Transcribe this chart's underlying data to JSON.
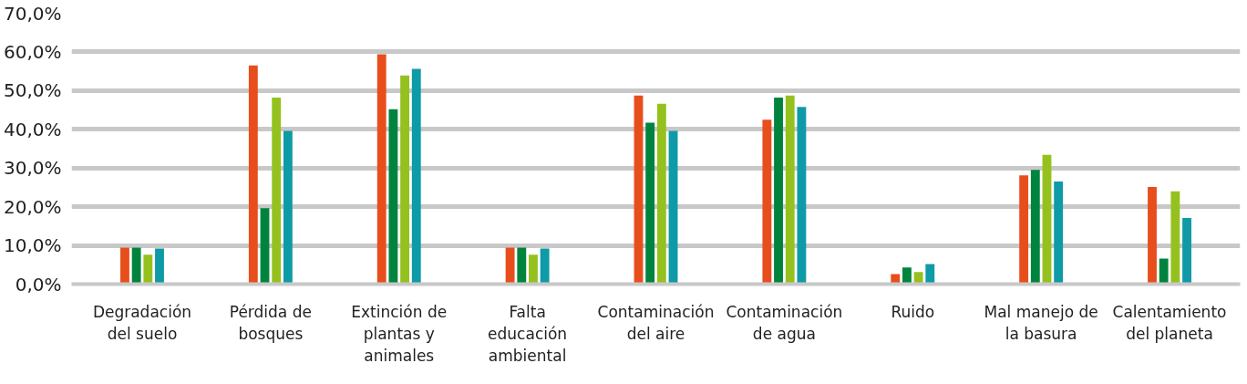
{
  "chart_data": {
    "type": "bar",
    "categories": [
      "Degradación del suelo",
      "Pérdida de bosques",
      "Extinción de plantas y animales",
      "Falta educación ambiental",
      "Contaminación del aire",
      "Contaminación de agua",
      "Ruido",
      "Mal manejo de la basura",
      "Calentamiento del planeta"
    ],
    "series": [
      {
        "color": "#e84e1b",
        "values": [
          9.4,
          56.5,
          59.4,
          9.4,
          48.7,
          42.5,
          2.6,
          28.1,
          25.1
        ]
      },
      {
        "color": "#00843d",
        "values": [
          9.4,
          19.6,
          45.2,
          9.4,
          41.7,
          48.2,
          4.3,
          29.5,
          6.6
        ]
      },
      {
        "color": "#95c11f",
        "values": [
          7.6,
          48.2,
          53.9,
          7.6,
          46.6,
          48.7,
          3.1,
          33.4,
          24.0
        ]
      },
      {
        "color": "#0e9aa7",
        "values": [
          9.2,
          39.6,
          55.6,
          9.2,
          39.6,
          45.8,
          5.2,
          26.5,
          17.1
        ]
      }
    ],
    "ylim": [
      0,
      70
    ],
    "yticks": [
      {
        "value": 0,
        "label": "0,0%"
      },
      {
        "value": 10,
        "label": "10,0%"
      },
      {
        "value": 20,
        "label": "20,0%"
      },
      {
        "value": 30,
        "label": "30,0%"
      },
      {
        "value": 40,
        "label": "40,0%"
      },
      {
        "value": 50,
        "label": "50,0%"
      },
      {
        "value": 60,
        "label": "60,0%"
      },
      {
        "value": 70,
        "label": "70,0%"
      }
    ],
    "grid": "y"
  }
}
